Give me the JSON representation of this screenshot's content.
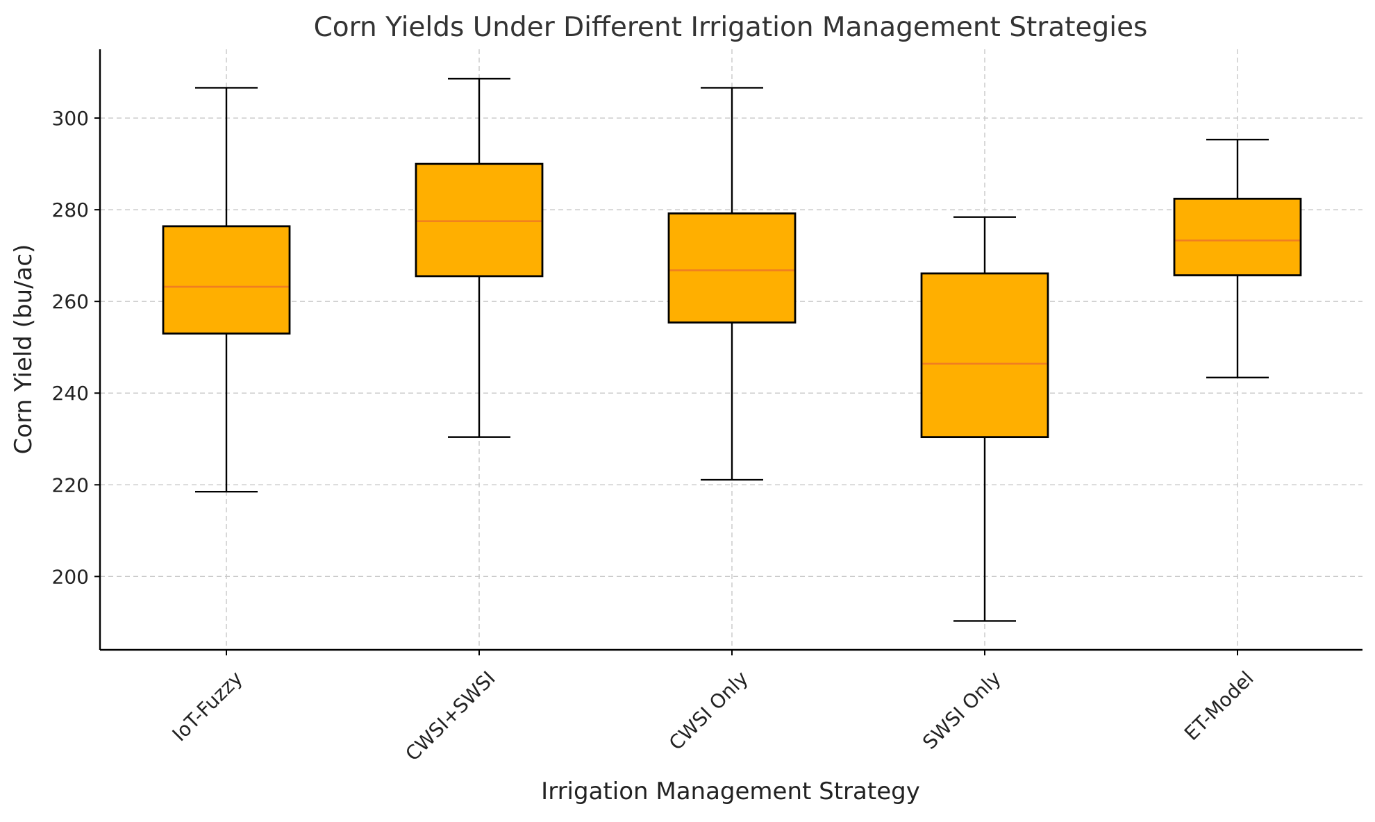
{
  "chart_data": {
    "type": "box",
    "title": "Corn Yields Under Different Irrigation Management Strategies",
    "xlabel": "Irrigation Management Strategy",
    "ylabel": "Corn Yield (bu/ac)",
    "ylim": [
      184,
      315
    ],
    "yticks": [
      200,
      220,
      240,
      260,
      280,
      300
    ],
    "grid": true,
    "colors": {
      "box_fill": "#FFAF00",
      "median": "#F07E21",
      "grid": "#c8c8c8",
      "axis": "#000000"
    },
    "categories": [
      "IoT-Fuzzy",
      "CWSI+SWSI",
      "CWSI Only",
      "SWSI Only",
      "ET-Model"
    ],
    "boxes": [
      {
        "category": "IoT-Fuzzy",
        "whislo": 218.5,
        "q1": 253.0,
        "med": 263.2,
        "q3": 276.4,
        "whishi": 306.6
      },
      {
        "category": "CWSI+SWSI",
        "whislo": 230.4,
        "q1": 265.5,
        "med": 277.5,
        "q3": 290.0,
        "whishi": 308.6
      },
      {
        "category": "CWSI Only",
        "whislo": 221.1,
        "q1": 255.4,
        "med": 266.8,
        "q3": 279.2,
        "whishi": 306.6
      },
      {
        "category": "SWSI Only",
        "whislo": 190.3,
        "q1": 230.4,
        "med": 246.4,
        "q3": 266.1,
        "whishi": 278.4
      },
      {
        "category": "ET-Model",
        "whislo": 243.4,
        "q1": 265.7,
        "med": 273.3,
        "q3": 282.4,
        "whishi": 295.3
      }
    ]
  }
}
